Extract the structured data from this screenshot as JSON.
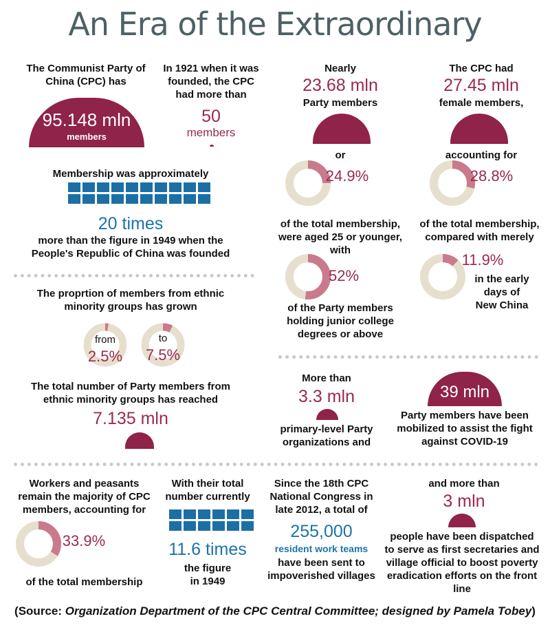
{
  "title": "An Era of the Extraordinary",
  "s1": {
    "line1": "The Communist Party of",
    "line2": "China (CPC) has",
    "value": "95.148 mln",
    "unit": "members"
  },
  "s2": {
    "line1": "In 1921 when it was",
    "line2": "founded, the CPC",
    "line3": "had more than",
    "value": "50",
    "unit": "members"
  },
  "s3": {
    "label": "Membership was approximately",
    "value": "20 times",
    "line1": "more than the figure in 1949 when the",
    "line2": "People's Republic of China was founded"
  },
  "s4": {
    "line1": "Nearly",
    "value": "23.68 mln",
    "line2": "Party members",
    "or": "or",
    "pct": "24.9%",
    "pct_value": 24.9,
    "line3": "of the total membership,",
    "line4": "were aged 25 or younger,",
    "line5": "with",
    "pct2": "52%",
    "pct2_value": 52,
    "line6": "of the Party members",
    "line7": "holding junior  college",
    "line8": "degrees or above"
  },
  "s5": {
    "line1": "The CPC had",
    "value": "27.45 mln",
    "line2": "female members,",
    "line3": "accounting for",
    "pct": "28.8%",
    "pct_value": 28.8,
    "line4": "of the total membership,",
    "line5": "compared with merely",
    "pct2": "11.9%",
    "pct2_value": 11.9,
    "line6": "in the early",
    "line7": "days of",
    "line8": "New China"
  },
  "s6": {
    "line1": "The proprtion of members from ethnic",
    "line2": "minority groups has grown",
    "from_label": "from",
    "from_pct": "2.5%",
    "from_value": 2.5,
    "to_label": "to",
    "to_pct": "7.5%",
    "to_value": 7.5,
    "line3": "The total number of Party members from",
    "line4": "ethnic minority groups has reached",
    "value": "7.135 mln"
  },
  "s7": {
    "line1": "More than",
    "value": "3.3 mln",
    "line2": "primary-level Party",
    "line3": "organizations and"
  },
  "s8": {
    "value": "39 mln",
    "line1": "Party members have been",
    "line2": "mobilized to assist the fight",
    "line3": "against COVID-19"
  },
  "s9": {
    "line1": "Workers and peasants",
    "line2": "remain the majority of CPC",
    "line3": "members, accounting for",
    "pct": "33.9%",
    "pct_value": 33.9,
    "line4": "of the total membership"
  },
  "s10": {
    "line1": "With their total",
    "line2": "number currently",
    "value": "11.6 times",
    "line3": "the figure",
    "line4": "in 1949"
  },
  "s11": {
    "line1": "Since the 18th CPC",
    "line2": "National Congress in",
    "line3": "late 2012, a total of",
    "value": "255,000",
    "sub": "resident work teams",
    "line4": "have been sent to",
    "line5": "impoverished villages"
  },
  "s12": {
    "line1": "and more than",
    "value": "3 mln",
    "line2": "people have been dispatched",
    "line3": "to serve as first secretaries and",
    "line4": "village official to boost poverty",
    "line5": "eradication efforts on the front line"
  },
  "source": {
    "prefix": "(Source: ",
    "text": "Organization Department of the CPC Central Committee; designed by Pamela Tobey",
    "suffix": ")"
  },
  "colors": {
    "maroon": "#9a2a4f",
    "blue": "#1c73a8",
    "ring_bg": "#e7dfcd",
    "title": "#4d6166"
  }
}
